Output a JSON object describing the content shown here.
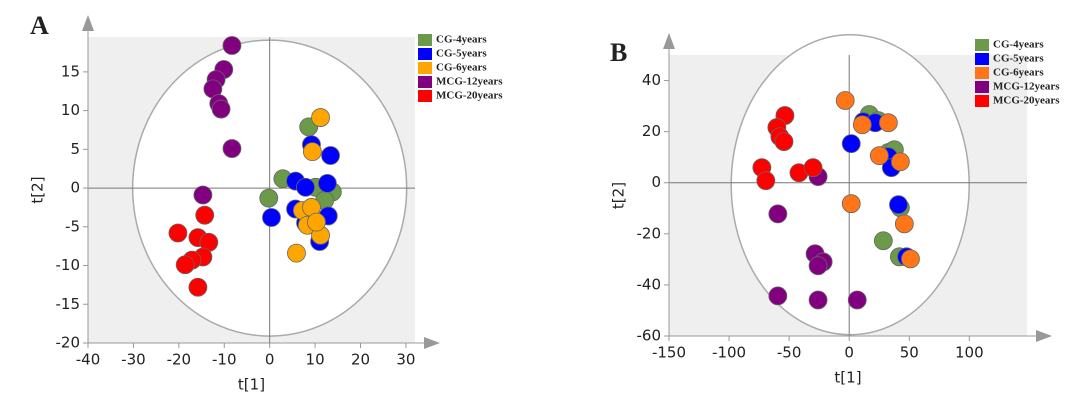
{
  "chart_data": [
    {
      "type": "scatter",
      "panel_label": "A",
      "x_label": "t[1]",
      "y_label": "t[2]",
      "xlim": [
        -40,
        32
      ],
      "ylim": [
        -20,
        19.5
      ],
      "xticks": [
        -40,
        -30,
        -20,
        -10,
        0,
        10,
        20,
        30
      ],
      "yticks": [
        -20,
        -15,
        -10,
        -5,
        0,
        5,
        10,
        15
      ],
      "series": [
        {
          "name": "CG-4years",
          "color": "#6a9a4a",
          "x": [
            8.6,
            2.9,
            -0.2,
            10.1,
            13.8,
            12.1
          ],
          "values": [
            7.9,
            1.2,
            -1.3,
            0.1,
            -0.5,
            -1.6
          ]
        },
        {
          "name": "CG-5years",
          "color": "#0000ff",
          "x": [
            9.2,
            13.4,
            5.7,
            7.9,
            12.7,
            0.4,
            5.7,
            12.9,
            11.0,
            7.9
          ],
          "values": [
            5.6,
            4.2,
            0.9,
            0.1,
            0.6,
            -3.8,
            -2.7,
            -3.6,
            -6.9,
            -4.5
          ]
        },
        {
          "name": "CG-6years",
          "color": "#ffa500",
          "x": [
            11.2,
            9.4,
            7.2,
            9.2,
            8.3,
            11.2,
            5.9,
            10.3
          ],
          "values": [
            9.1,
            4.7,
            -2.9,
            -2.5,
            -4.8,
            -6.1,
            -8.4,
            -4.4
          ]
        },
        {
          "name": "MCG-12years",
          "color": "#800080",
          "x": [
            -8.3,
            -10.1,
            -11.8,
            -12.5,
            -11.2,
            -10.7,
            -8.3,
            -14.7
          ],
          "values": [
            18.4,
            15.3,
            14.0,
            12.8,
            10.9,
            10.2,
            5.1,
            -0.9
          ]
        },
        {
          "name": "MCG-20years",
          "color": "#ff0000",
          "x": [
            -14.3,
            -20.2,
            -15.8,
            -13.4,
            -14.7,
            -17.1,
            -18.6,
            -15.8
          ],
          "values": [
            -3.5,
            -5.8,
            -6.4,
            -7.0,
            -8.9,
            -9.3,
            -9.9,
            -12.8
          ]
        }
      ]
    },
    {
      "type": "scatter",
      "panel_label": "B",
      "x_label": "t[1]",
      "y_label": "t[2]",
      "xlim": [
        -150,
        148
      ],
      "ylim": [
        -60,
        50
      ],
      "xticks": [
        -150,
        -100,
        -50,
        0,
        50,
        100
      ],
      "yticks": [
        -60,
        -40,
        -20,
        0,
        20,
        40
      ],
      "series": [
        {
          "name": "CG-4years",
          "color": "#6a9a4a",
          "x": [
            16.7,
            24.2,
            32.6,
            37.6,
            42.6,
            28.4,
            41.8
          ],
          "values": [
            26.7,
            24.3,
            11.8,
            12.9,
            -9.8,
            -22.7,
            -29.0
          ]
        },
        {
          "name": "CG-5years",
          "color": "#0000ff",
          "x": [
            1.7,
            11.7,
            21.7,
            32.6,
            35.1,
            41.0,
            47.7
          ],
          "values": [
            15.3,
            23.9,
            23.5,
            10.2,
            5.9,
            -8.6,
            -29.0
          ]
        },
        {
          "name": "CG-6years",
          "color": "#ff7518",
          "x": [
            -3.3,
            10.9,
            32.6,
            25.1,
            42.6,
            45.9,
            51.0,
            1.7
          ],
          "values": [
            32.2,
            22.7,
            23.5,
            10.6,
            8.2,
            -16.1,
            -29.8,
            -8.2
          ]
        },
        {
          "name": "MCG-12years",
          "color": "#800080",
          "x": [
            -25.9,
            -59.4,
            -28.4,
            -21.7,
            -25.9,
            -59.4,
            -25.9,
            6.7
          ],
          "values": [
            2.4,
            -12.2,
            -27.8,
            -31.0,
            -32.5,
            -44.3,
            -45.9,
            -45.9
          ]
        },
        {
          "name": "MCG-20years",
          "color": "#ff0000",
          "x": [
            -53.5,
            -60.2,
            -57.7,
            -54.3,
            -72.7,
            -69.4,
            -41.8,
            -30.1
          ],
          "values": [
            26.3,
            21.6,
            18.0,
            16.1,
            5.9,
            0.8,
            3.9,
            5.9
          ]
        }
      ]
    }
  ]
}
